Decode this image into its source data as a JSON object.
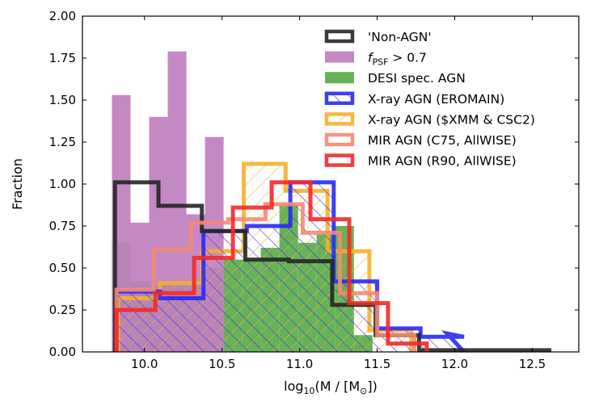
{
  "chart_data": {
    "type": "histogram",
    "xlabel": "log10(M / [M_sun])",
    "xlabel_parts": {
      "pre": "log",
      "sub": "10",
      "mid": "(M / [M",
      "sub2": "⊙",
      "post": "])"
    },
    "ylabel": "Fraction",
    "xlim": [
      9.6,
      12.8
    ],
    "ylim": [
      0.0,
      2.0
    ],
    "xticks": [
      "10.0",
      "10.5",
      "11.0",
      "11.5",
      "12.0",
      "12.5"
    ],
    "xtick_values": [
      10.0,
      10.5,
      11.0,
      11.5,
      12.0,
      12.5
    ],
    "yticks": [
      "0.00",
      "0.25",
      "0.50",
      "0.75",
      "1.00",
      "1.25",
      "1.50",
      "1.75",
      "2.00"
    ],
    "ytick_values": [
      0,
      0.25,
      0.5,
      0.75,
      1.0,
      1.25,
      1.5,
      1.75,
      2.0
    ],
    "legend_position": "upper-right",
    "series": [
      {
        "name": "DESI spec. AGN",
        "style": "filled",
        "color": "#5aab4a",
        "edges": [
          9.79,
          9.91,
          10.03,
          10.15,
          10.27,
          10.39,
          10.51,
          10.63,
          10.75,
          10.87,
          10.99,
          11.11,
          11.23,
          11.35,
          11.47
        ],
        "values": [
          0.65,
          0.42,
          0.4,
          0.4,
          0.4,
          0.5,
          0.55,
          0.55,
          0.62,
          0.88,
          0.65,
          0.7,
          0.75,
          0.1
        ]
      },
      {
        "name": "f_PSF > 0.7",
        "label_parts": {
          "pre": "f",
          "sub": "PSF",
          "post": " > 0.7"
        },
        "style": "filled",
        "color": "#bf7fbf",
        "edges": [
          9.79,
          9.91,
          10.03,
          10.15,
          10.27,
          10.39,
          10.51
        ],
        "values": [
          1.53,
          0.77,
          1.4,
          1.79,
          0.82,
          1.28,
          0.62
        ]
      },
      {
        "name": "'Non-AGN'",
        "style": "step",
        "color": "#262626",
        "edges": [
          9.81,
          10.09,
          10.37,
          10.65,
          10.93,
          11.21,
          11.49,
          11.77,
          12.05,
          12.33,
          12.61
        ],
        "values": [
          1.01,
          0.87,
          0.72,
          0.55,
          0.54,
          0.28,
          0.1,
          0.01,
          0.01,
          0.01
        ]
      },
      {
        "name": "X-ray AGN (EROMAIN)",
        "style": "hatch",
        "color": "#2929f5",
        "edges": [
          9.82,
          10.1,
          10.38,
          10.66,
          10.94,
          11.22,
          11.5,
          11.78,
          12.06
        ],
        "values": [
          0.36,
          0.32,
          0.72,
          0.75,
          1.01,
          0.42,
          0.14,
          0.09
        ],
        "final_edge": 11.95,
        "final_value": 0.11
      },
      {
        "name": "X-ray AGN ($XMM & CSC2)",
        "style": "hatch",
        "color": "#f5b02e",
        "edges": [
          9.83,
          10.1,
          10.37,
          10.64,
          10.91,
          11.18,
          11.45,
          11.72
        ],
        "values": [
          0.32,
          0.41,
          0.6,
          1.12,
          0.96,
          0.6,
          0.13
        ]
      },
      {
        "name": "MIR AGN (C75, AllWISE)",
        "style": "step",
        "color": "#f58a74",
        "edges": [
          9.82,
          10.06,
          10.3,
          10.54,
          10.78,
          11.02,
          11.26,
          11.5,
          11.74
        ],
        "values": [
          0.37,
          0.61,
          0.77,
          0.79,
          0.88,
          0.71,
          0.35,
          0.1
        ]
      },
      {
        "name": "MIR AGN (R90, AllWISE)",
        "style": "step",
        "color": "#f52828",
        "edges": [
          9.82,
          10.07,
          10.32,
          10.57,
          10.82,
          11.07,
          11.32,
          11.57,
          11.82
        ],
        "values": [
          0.25,
          0.35,
          0.56,
          0.86,
          1.01,
          0.79,
          0.29,
          0.05
        ]
      }
    ],
    "legend_order": [
      "'Non-AGN'",
      "f_PSF > 0.7",
      "DESI spec. AGN",
      "X-ray AGN (EROMAIN)",
      "X-ray AGN ($XMM & CSC2)",
      "MIR AGN (C75, AllWISE)",
      "MIR AGN (R90, AllWISE)"
    ]
  }
}
